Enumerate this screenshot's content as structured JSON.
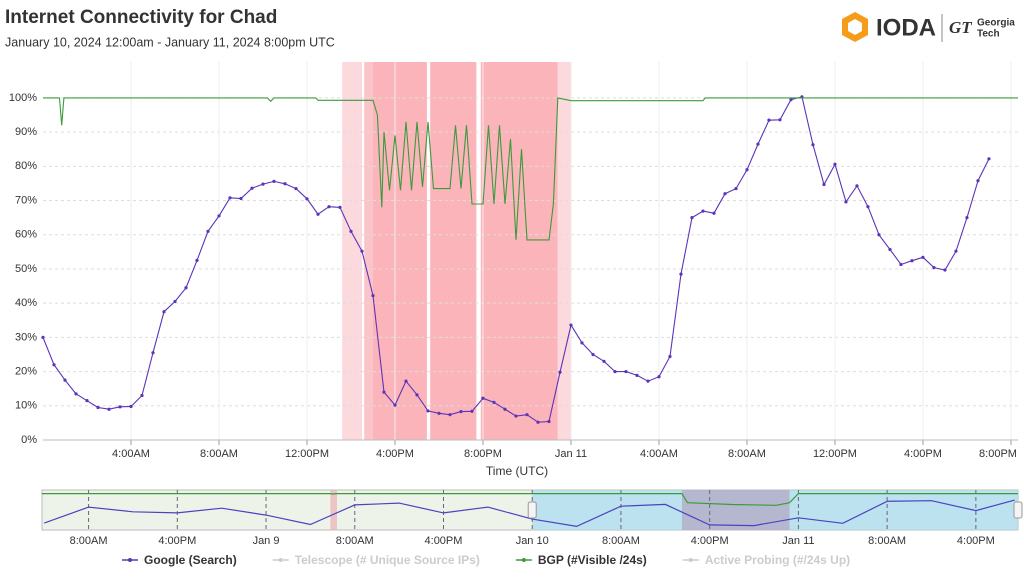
{
  "logo": {
    "name": "IODA",
    "org_line1": "Georgia",
    "org_line2": "Tech",
    "org_mark": "GT"
  },
  "chart_data": [
    {
      "type": "line",
      "title": "Internet Connectivity for Chad",
      "subtitle": "January 10, 2024 12:00am - January 11, 2024 8:00pm UTC",
      "x_label": "Time (UTC)",
      "xlim": [
        0,
        44.32
      ],
      "xticks": [
        {
          "value": 4,
          "label": "4:00AM"
        },
        {
          "value": 8,
          "label": "8:00AM"
        },
        {
          "value": 12,
          "label": "12:00PM"
        },
        {
          "value": 16,
          "label": "4:00PM"
        },
        {
          "value": 20,
          "label": "8:00PM"
        },
        {
          "value": 24,
          "label": "Jan 11"
        },
        {
          "value": 28,
          "label": "4:00AM"
        },
        {
          "value": 32,
          "label": "8:00AM"
        },
        {
          "value": 36,
          "label": "12:00PM"
        },
        {
          "value": 40,
          "label": "4:00PM"
        },
        {
          "value": 44,
          "label": "8:00PM"
        }
      ],
      "ylim": [
        0,
        110.5
      ],
      "yticks": [
        {
          "value": 0,
          "label": "0%"
        },
        {
          "value": 10,
          "label": "10%"
        },
        {
          "value": 20,
          "label": "20%"
        },
        {
          "value": 30,
          "label": "30%"
        },
        {
          "value": 40,
          "label": "40%"
        },
        {
          "value": 50,
          "label": "50%"
        },
        {
          "value": 60,
          "label": "60%"
        },
        {
          "value": 70,
          "label": "70%"
        },
        {
          "value": 80,
          "label": "80%"
        },
        {
          "value": 90,
          "label": "90%"
        },
        {
          "value": 100,
          "label": "100%"
        }
      ],
      "grid": true,
      "shaded_regions": [
        {
          "start": 13.6,
          "end": 14.5,
          "color": "#fcd9dc"
        },
        {
          "start": 14.6,
          "end": 15.0,
          "color": "#fbc4c9"
        },
        {
          "start": 15.0,
          "end": 17.45,
          "color": "#fcb4bb"
        },
        {
          "start": 17.6,
          "end": 19.7,
          "color": "#fcb4bb"
        },
        {
          "start": 19.9,
          "end": 23.4,
          "color": "#fcb4bb"
        },
        {
          "start": 23.4,
          "end": 24.0,
          "color": "#fcd9dc"
        }
      ],
      "series": [
        {
          "name": "Google (Search)",
          "color": "#5b34b8",
          "visible": true,
          "markers": true,
          "x": [
            0,
            0.5,
            1,
            1.5,
            2,
            2.5,
            3,
            3.5,
            4,
            4.5,
            5,
            5.5,
            6,
            6.5,
            7,
            7.5,
            8,
            8.5,
            9,
            9.5,
            10,
            10.5,
            11,
            11.5,
            12,
            12.5,
            13,
            13.5,
            14,
            14.5,
            15,
            15.5,
            16,
            16.5,
            17,
            17.5,
            18,
            18.5,
            19,
            19.5,
            20,
            20.5,
            21,
            21.5,
            22,
            22.5,
            23,
            23.5,
            24,
            24.5,
            25,
            25.5,
            26,
            26.5,
            27,
            27.5,
            28,
            28.5,
            29,
            29.5,
            30,
            30.5,
            31,
            31.5,
            32,
            32.5,
            33,
            33.5,
            34,
            34.5,
            35,
            35.5,
            36,
            36.5,
            37,
            37.5,
            38,
            38.5,
            39,
            39.5,
            40,
            40.5,
            41,
            41.5,
            42,
            42.5,
            43
          ],
          "values": [
            30,
            22,
            17.5,
            13.5,
            11.5,
            9.5,
            9,
            9.7,
            9.8,
            13,
            25.5,
            37.5,
            40.5,
            44.5,
            52.5,
            61,
            65.5,
            70.8,
            70.6,
            73.6,
            74.8,
            75.6,
            74.9,
            73.5,
            70.5,
            66,
            68.2,
            68,
            61,
            55.2,
            42.2,
            14,
            10.2,
            17.2,
            13.2,
            8.5,
            7.8,
            7.4,
            8.3,
            8.4,
            12.2,
            11,
            9,
            7,
            7.4,
            5.2,
            5.4,
            19.8,
            33.6,
            28.4,
            25,
            23,
            20,
            20,
            18.9,
            17.2,
            18.5,
            24.4,
            48.5,
            65,
            66.9,
            66.3,
            72,
            73.5,
            79,
            86.5,
            93.5,
            93.6,
            99.5,
            100.3,
            86.3,
            74.7,
            80.6,
            69.6,
            74.3,
            68.2,
            60,
            55.7,
            51.3,
            52.4,
            53.4,
            50.4,
            49.7,
            55.2,
            65,
            75.8,
            82.2
          ]
        },
        {
          "name": "Telescope (# Unique Source IPs)",
          "color": "#cccccc",
          "visible": false
        },
        {
          "name": "BGP (#Visible /24s)",
          "color": "#3c9a3c",
          "visible": true,
          "markers": false,
          "x": [
            0,
            0.75,
            0.85,
            0.95,
            10.2,
            10.35,
            10.5,
            12.4,
            12.5,
            15.0,
            15.2,
            15.4,
            15.5,
            15.75,
            16,
            16.25,
            16.5,
            16.75,
            17,
            17.25,
            17.5,
            17.75,
            18.5,
            18.75,
            19,
            19.25,
            19.5,
            20,
            20.25,
            20.5,
            20.75,
            21,
            21.25,
            21.5,
            21.75,
            22,
            23,
            23.2,
            23.4,
            24,
            30,
            30.1,
            44.32
          ],
          "values": [
            100,
            100,
            92,
            100,
            100,
            99,
            100,
            100,
            99.3,
            99.3,
            95,
            68,
            90,
            73,
            89,
            73,
            93,
            73,
            93,
            74,
            93,
            73.5,
            73.5,
            92,
            73.5,
            92,
            69,
            69,
            92,
            69,
            92,
            69,
            88,
            58.5,
            85,
            58.5,
            58.5,
            69,
            100,
            99.2,
            99.2,
            100,
            100
          ]
        },
        {
          "name": "Active Probing (#/24s Up)",
          "color": "#cccccc",
          "visible": false
        }
      ]
    },
    {
      "type": "line",
      "xlim": [
        3.8,
        91.8
      ],
      "ylim": [
        0,
        110
      ],
      "xticks": [
        {
          "value": 8,
          "label": "8:00AM"
        },
        {
          "value": 16,
          "label": "4:00PM"
        },
        {
          "value": 24,
          "label": "Jan 9"
        },
        {
          "value": 32,
          "label": "8:00AM"
        },
        {
          "value": 40,
          "label": "4:00PM"
        },
        {
          "value": 48,
          "label": "Jan 10"
        },
        {
          "value": 56,
          "label": "8:00AM"
        },
        {
          "value": 64,
          "label": "4:00PM"
        },
        {
          "value": 72,
          "label": "Jan 11"
        },
        {
          "value": 80,
          "label": "8:00AM"
        },
        {
          "value": 88,
          "label": "4:00PM"
        }
      ],
      "shaded_regions": [
        {
          "start": 48,
          "end": 91.8,
          "color": "#a9dcef"
        },
        {
          "start": 61.5,
          "end": 71.2,
          "color": "#b3a8c4"
        },
        {
          "start": 29.8,
          "end": 30.4,
          "color": "#e9b4b8"
        }
      ],
      "series": [
        {
          "name": "Google (Search)",
          "color": "#4a42c0",
          "x": [
            4,
            8,
            12,
            16,
            20,
            24,
            28,
            32,
            36,
            40,
            44,
            48,
            52,
            56,
            60,
            64,
            68,
            72,
            76,
            80,
            84,
            88,
            91.5
          ],
          "values": [
            19,
            63,
            50,
            47,
            60,
            41,
            15,
            69,
            74,
            47,
            63,
            30,
            9.8,
            65.5,
            70.5,
            14,
            12.2,
            33.6,
            18.5,
            79,
            80.6,
            53.4,
            82.2
          ]
        },
        {
          "name": "BGP (#Visible /24s)",
          "color": "#3c9a3c",
          "x": [
            3.8,
            29.8,
            30.0,
            30.4,
            61.5,
            62,
            66,
            70,
            71.2,
            72,
            91.8
          ],
          "values": [
            100,
            100,
            99,
            100,
            100,
            75,
            70,
            68,
            75,
            100,
            100
          ]
        }
      ]
    }
  ]
}
